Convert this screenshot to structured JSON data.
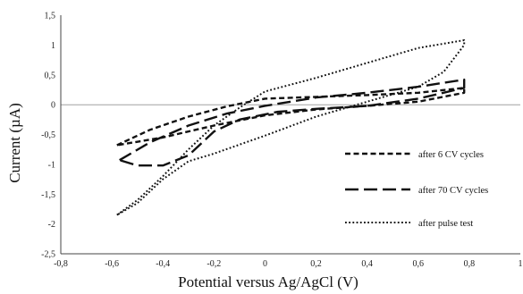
{
  "chart_data": {
    "type": "line",
    "title": "",
    "xlabel": "Potential versus Ag/AgCl (V)",
    "ylabel": "Current (µA)",
    "xlim": [
      -0.8,
      1.0
    ],
    "ylim": [
      -2.5,
      1.5
    ],
    "x_ticks": [
      -0.8,
      -0.6,
      -0.4,
      -0.2,
      0,
      0.2,
      0.4,
      0.6,
      0.8,
      1
    ],
    "x_tick_labels": [
      "-0,8",
      "-0,6",
      "-0,4",
      "-0,2",
      "0",
      "0,2",
      "0,4",
      "0,6",
      "0,8",
      "1"
    ],
    "y_ticks": [
      -2.5,
      -2,
      -1.5,
      -1,
      -0.5,
      0,
      0.5,
      1,
      1.5
    ],
    "y_tick_labels": [
      "-2,5",
      "-2",
      "-1,5",
      "-1",
      "-0,5",
      "0",
      "0,5",
      "1",
      "1,5"
    ],
    "grid": false,
    "legend_position": "right",
    "series": [
      {
        "name": "after 6 CV cycles",
        "style": "short-dash",
        "color": "#111111",
        "x": [
          -0.58,
          -0.45,
          -0.3,
          -0.15,
          0.0,
          0.2,
          0.4,
          0.6,
          0.78,
          0.78,
          0.6,
          0.4,
          0.2,
          0.0,
          -0.2,
          -0.4,
          -0.58
        ],
        "y": [
          -0.68,
          -0.42,
          -0.2,
          -0.03,
          0.1,
          0.13,
          0.16,
          0.2,
          0.28,
          0.2,
          0.05,
          -0.02,
          -0.08,
          -0.18,
          -0.35,
          -0.55,
          -0.68
        ]
      },
      {
        "name": "after 70 CV cycles",
        "style": "long-dash",
        "color": "#111111",
        "x": [
          -0.57,
          -0.45,
          -0.3,
          -0.15,
          0.0,
          0.2,
          0.4,
          0.6,
          0.78,
          0.78,
          0.6,
          0.4,
          0.2,
          0.05,
          -0.1,
          -0.2,
          -0.3,
          -0.4,
          -0.5,
          -0.57
        ],
        "y": [
          -0.93,
          -0.63,
          -0.35,
          -0.15,
          -0.02,
          0.12,
          0.2,
          0.3,
          0.42,
          0.28,
          0.1,
          -0.02,
          -0.07,
          -0.12,
          -0.25,
          -0.45,
          -0.85,
          -1.02,
          -1.02,
          -0.93
        ]
      },
      {
        "name": "after pulse test",
        "style": "dotted",
        "color": "#111111",
        "x": [
          -0.58,
          -0.5,
          -0.4,
          -0.3,
          -0.2,
          -0.1,
          0.0,
          0.2,
          0.4,
          0.6,
          0.78,
          0.78,
          0.7,
          0.6,
          0.4,
          0.2,
          0.0,
          -0.2,
          -0.3,
          -0.4,
          -0.5,
          -0.58
        ],
        "y": [
          -1.85,
          -1.6,
          -1.2,
          -0.75,
          -0.35,
          -0.05,
          0.22,
          0.45,
          0.7,
          0.95,
          1.08,
          1.0,
          0.55,
          0.3,
          0.05,
          -0.2,
          -0.52,
          -0.82,
          -0.95,
          -1.25,
          -1.65,
          -1.85
        ]
      }
    ]
  }
}
